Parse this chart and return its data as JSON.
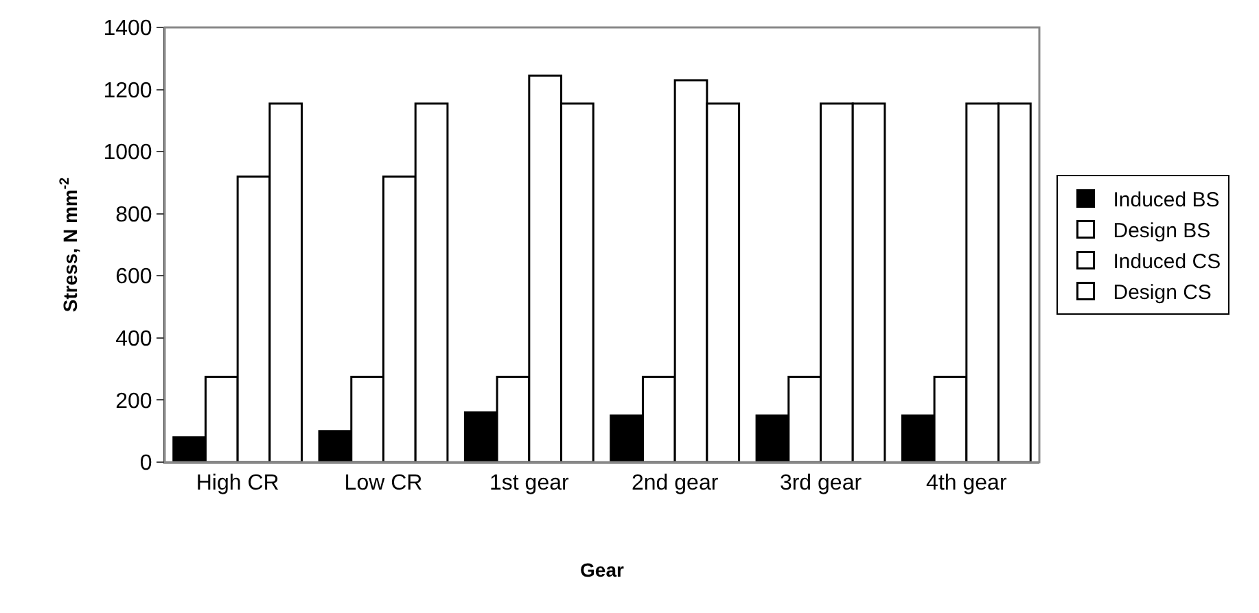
{
  "chart_data": {
    "type": "bar",
    "xlabel": "Gear",
    "ylabel": "Stress, N mm$^{-2}$",
    "categories": [
      "High CR",
      "Low CR",
      "1st gear",
      "2nd gear",
      "3rd gear",
      "4th gear"
    ],
    "series": [
      {
        "name": "Induced BS",
        "color": "#000000",
        "values": [
          80,
          100,
          160,
          150,
          150,
          150
        ]
      },
      {
        "name": "Design BS",
        "color": "#ffffff",
        "values": [
          275,
          275,
          275,
          275,
          275,
          275
        ]
      },
      {
        "name": "Induced CS",
        "color": "#ffffff",
        "values": [
          920,
          920,
          1245,
          1230,
          1155,
          1155
        ]
      },
      {
        "name": "Design CS",
        "color": "#ffffff",
        "values": [
          1155,
          1155,
          1155,
          1155,
          1155,
          1155
        ]
      }
    ],
    "ylim": [
      0,
      1400
    ],
    "yticks": [
      0,
      200,
      400,
      600,
      800,
      1000,
      1200,
      1400
    ],
    "grid": false,
    "legend": "right"
  }
}
